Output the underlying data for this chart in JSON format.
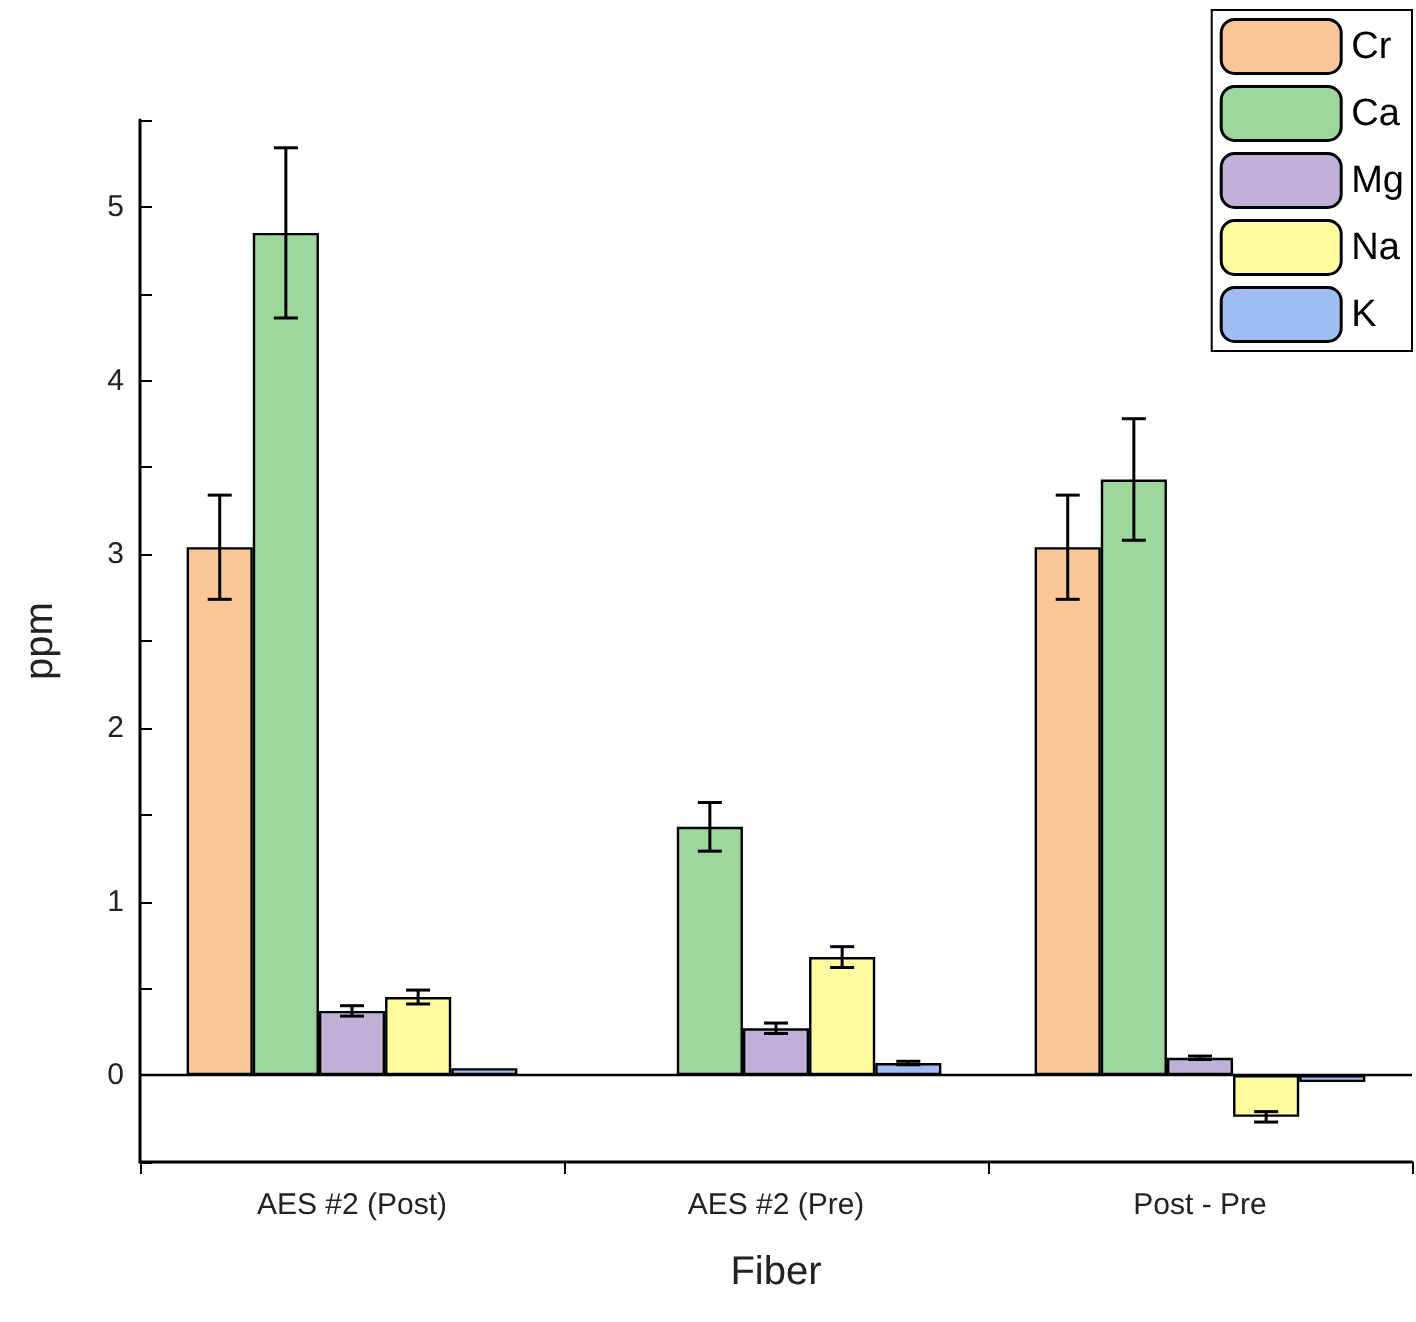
{
  "chart_data": {
    "type": "bar",
    "xlabel": "Fiber",
    "ylabel": "ppm",
    "categories": [
      "AES #2 (Post)",
      "AES #2 (Pre)",
      "Post - Pre"
    ],
    "series": [
      {
        "name": "Cr",
        "color": "#f9c797",
        "values": [
          3.04,
          null,
          3.04
        ],
        "errors": [
          0.3,
          null,
          0.3
        ]
      },
      {
        "name": "Ca",
        "color": "#9dd79b",
        "values": [
          4.85,
          1.43,
          3.43
        ],
        "errors": [
          0.49,
          0.14,
          0.35
        ]
      },
      {
        "name": "Mg",
        "color": "#c1b1d9",
        "values": [
          0.37,
          0.27,
          0.1
        ],
        "errors": [
          0.03,
          0.03,
          0.01
        ]
      },
      {
        "name": "Na",
        "color": "#fffb9f",
        "values": [
          0.45,
          0.68,
          -0.24
        ],
        "errors": [
          0.04,
          0.06,
          0.03
        ]
      },
      {
        "name": "K",
        "color": "#9dbdf3",
        "values": [
          0.04,
          0.07,
          -0.04
        ],
        "errors": [
          null,
          0.01,
          null
        ]
      }
    ],
    "ylim": [
      -0.5,
      5.5
    ],
    "yticks": [
      {
        "value": -0.5,
        "label": null
      },
      0,
      {
        "value": 0.5,
        "label": null
      },
      1,
      {
        "value": 1.5,
        "label": null
      },
      2,
      {
        "value": 2.5,
        "label": null
      },
      3,
      {
        "value": 3.5,
        "label": null
      },
      4,
      {
        "value": 4.5,
        "label": null
      },
      5,
      {
        "value": 5.5,
        "label": null
      }
    ],
    "ref_lines": [
      {
        "axis": "y",
        "value": 0,
        "color": "#000000"
      }
    ],
    "grid": false,
    "legend": "top right"
  }
}
